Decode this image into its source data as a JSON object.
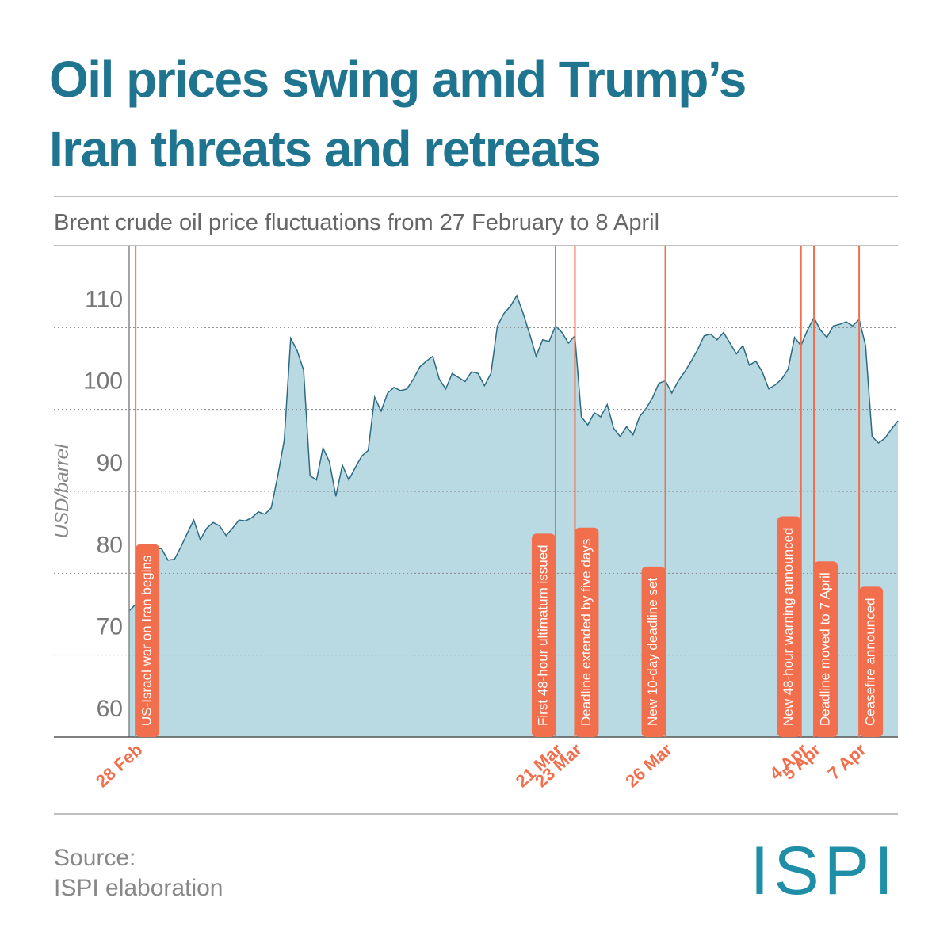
{
  "chart_data": {
    "type": "area",
    "title": [
      "Oil prices swing amid Trump’s",
      "Iran threats and retreats"
    ],
    "subtitle": "Brent crude oil price fluctuations from 27 February to 8 April",
    "y_label": "USD/barrel",
    "source": [
      "Source:",
      "ISPI elaboration"
    ],
    "logo": "ISPI",
    "color": "#2d6a82",
    "fill": "#b9d9e3",
    "event_color": "#f26f4e",
    "ylim": [
      60,
      120
    ],
    "yticks": [
      60,
      70,
      80,
      90,
      100,
      110
    ],
    "grid": true,
    "categories": [
      null,
      "28 Feb",
      null,
      null,
      null,
      null,
      null,
      null,
      null,
      null,
      null,
      null,
      null,
      null,
      null,
      null,
      null,
      null,
      null,
      null,
      null,
      null,
      null,
      null,
      null,
      null,
      null,
      null,
      null,
      null,
      null,
      null,
      null,
      null,
      null,
      null,
      null,
      null,
      null,
      null,
      null,
      null,
      null,
      null,
      null,
      null,
      null,
      null,
      null,
      null,
      null,
      null,
      null,
      null,
      null,
      null,
      null,
      null,
      null,
      null,
      null,
      null,
      null,
      null,
      null,
      null,
      "21 Mar",
      null,
      null,
      "23 Mar",
      null,
      null,
      null,
      null,
      null,
      null,
      null,
      null,
      null,
      null,
      null,
      null,
      null,
      "26 Mar",
      null,
      null,
      null,
      null,
      null,
      null,
      null,
      null,
      null,
      null,
      null,
      null,
      null,
      null,
      null,
      null,
      null,
      null,
      null,
      null,
      "4 Apr",
      null,
      "5 Apr",
      null,
      null,
      null,
      null,
      null,
      null,
      "7 Apr",
      null,
      null,
      null,
      null,
      null,
      null
    ],
    "values": [
      75.4,
      76.2,
      82.2,
      83.2,
      83,
      83,
      81.6,
      81.7,
      83.2,
      84.9,
      86.5,
      84.1,
      85.5,
      86.2,
      85.8,
      84.6,
      85.5,
      86.5,
      86.4,
      86.8,
      87.5,
      87.2,
      88,
      91.9,
      96.2,
      108.7,
      107.2,
      104.8,
      91.9,
      91.4,
      95.3,
      93.6,
      89.4,
      93.2,
      91.4,
      92.9,
      94.3,
      95,
      101.5,
      99.8,
      102,
      102.7,
      102.3,
      102.5,
      103.7,
      105.2,
      105.9,
      106.5,
      103.7,
      102.5,
      104.4,
      103.9,
      103.4,
      104.6,
      104.4,
      102.9,
      104.4,
      110.2,
      111.7,
      112.6,
      113.9,
      111.7,
      109.2,
      106.5,
      108.5,
      108.3,
      110.2,
      109.4,
      108.1,
      109,
      99.1,
      98.1,
      99.6,
      99.1,
      100.6,
      97.7,
      96.7,
      97.9,
      96.9,
      99.1,
      100.1,
      101.4,
      103.2,
      103.5,
      102,
      103.5,
      104.6,
      105.9,
      107.3,
      109,
      109.2,
      108.5,
      109.4,
      108.1,
      106.8,
      107.8,
      105.4,
      105.9,
      104.6,
      102.5,
      103,
      103.7,
      104.9,
      108.8,
      107.8,
      109.7,
      111.2,
      109.7,
      108.8,
      110.2,
      110.4,
      110.7,
      110.2,
      111,
      107.8,
      96.7,
      95.9,
      96.5,
      97.6,
      98.6
    ],
    "annotations": [
      "US-Israel war on Iran begins",
      "First 48-hour ultimatum issued",
      "Deadline extended by five days",
      "New 10-day deadline set",
      "New 48-hour warning announced",
      "Deadline moved to 7 April",
      "Ceasefire announced"
    ]
  }
}
